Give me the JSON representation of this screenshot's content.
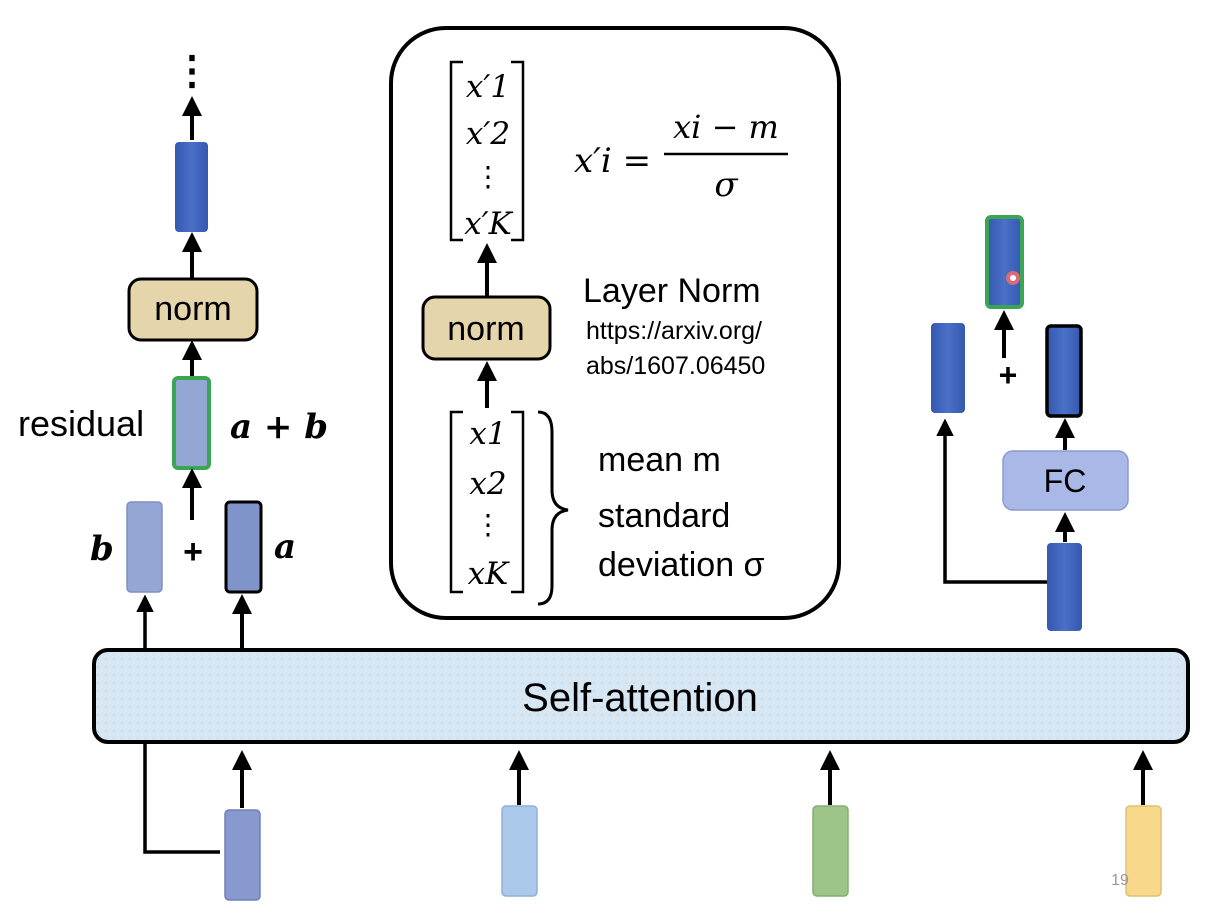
{
  "slide_number": "19",
  "self_attention": {
    "label": "Self-attention"
  },
  "left_block": {
    "continue_dots": "⋮",
    "norm_label": "norm",
    "residual_label": "residual",
    "sum_label": "a + b",
    "plus": "+",
    "b_label": "b",
    "a_label": "a"
  },
  "layer_norm_panel": {
    "output_vector": [
      "x′1",
      "x′2",
      "⋮",
      "x′K"
    ],
    "formula": {
      "lhs": "x′i =",
      "numerator": "xi − m",
      "denominator": "σ"
    },
    "norm_label": "norm",
    "title": "Layer Norm",
    "link_line1": "https://arxiv.org/",
    "link_line2": "abs/1607.06450",
    "input_vector": [
      "x1",
      "x2",
      "⋮",
      "xK"
    ],
    "stats": {
      "mean_line": "mean m",
      "std_line1": "standard",
      "std_line2": "deviation σ"
    }
  },
  "right_block": {
    "fc_label": "FC",
    "plus": "+"
  },
  "colors": {
    "dark_blue": "#3f64b8",
    "light_blue": "#8fa5d6",
    "mid_blue": "#8799cf",
    "norm_fill": "#e5d5ab",
    "fc_fill": "#a9b8e6",
    "green_border": "#3aa655",
    "input_light_blue": "#a9c8ea",
    "input_green": "#9dc58a",
    "input_yellow": "#f8d98c",
    "self_attention_fill": "#d7e6f3"
  },
  "icons": {
    "cursor": "red-cursor-dot-icon"
  }
}
